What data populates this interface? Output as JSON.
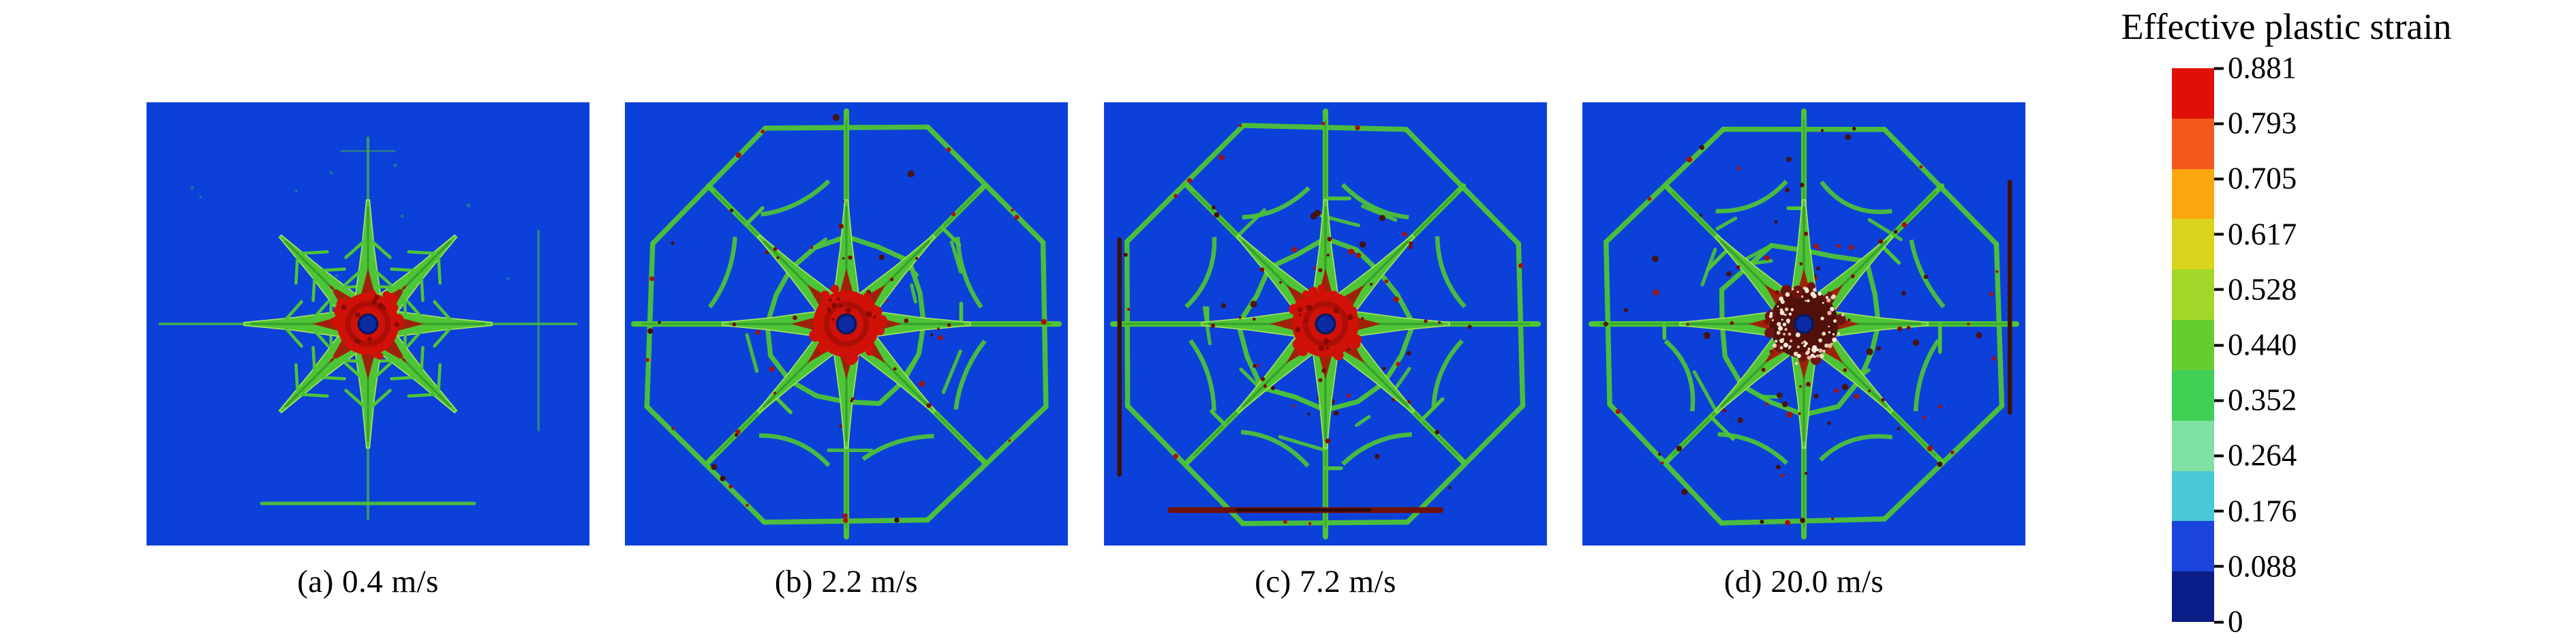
{
  "legend": {
    "title": "Effective plastic strain",
    "ticks": [
      "0.881",
      "0.793",
      "0.705",
      "0.617",
      "0.528",
      "0.440",
      "0.352",
      "0.264",
      "0.176",
      "0.088",
      "0"
    ],
    "band_colors": [
      "#e01008",
      "#f4581c",
      "#fba70e",
      "#d9d51e",
      "#a2d728",
      "#66cd31",
      "#3fcf55",
      "#7fe0a4",
      "#49c8d8",
      "#1b44dc",
      "#0b1d86"
    ]
  },
  "panels": [
    {
      "caption": "(a) 0.4 m/s",
      "type": "star",
      "seed": 11,
      "dark_specks": 0
    },
    {
      "caption": "(b) 2.2 m/s",
      "type": "web",
      "seed": 23,
      "dark_specks": 10
    },
    {
      "caption": "(c) 7.2 m/s",
      "type": "web",
      "seed": 37,
      "dark_specks": 22,
      "edges": [
        "left",
        "bottom"
      ]
    },
    {
      "caption": "(d) 20.0 m/s",
      "type": "web",
      "seed": 51,
      "dark_specks": 50,
      "burn_core": true,
      "edges": [
        "right"
      ]
    }
  ],
  "colors": {
    "background": "#0b41d8",
    "green": "#4ec437",
    "green_dark": "#2f9427",
    "green_light": "#a8e55e",
    "core_red": "#cf1108",
    "core_dark_red": "#8a0b04",
    "core_hole_blue": "#0b2aa4",
    "speck_red": "#a81205",
    "speck_dark": "#4a0d04",
    "burn_maroon": "#52100a",
    "white_speck": "#f7f2e6"
  }
}
